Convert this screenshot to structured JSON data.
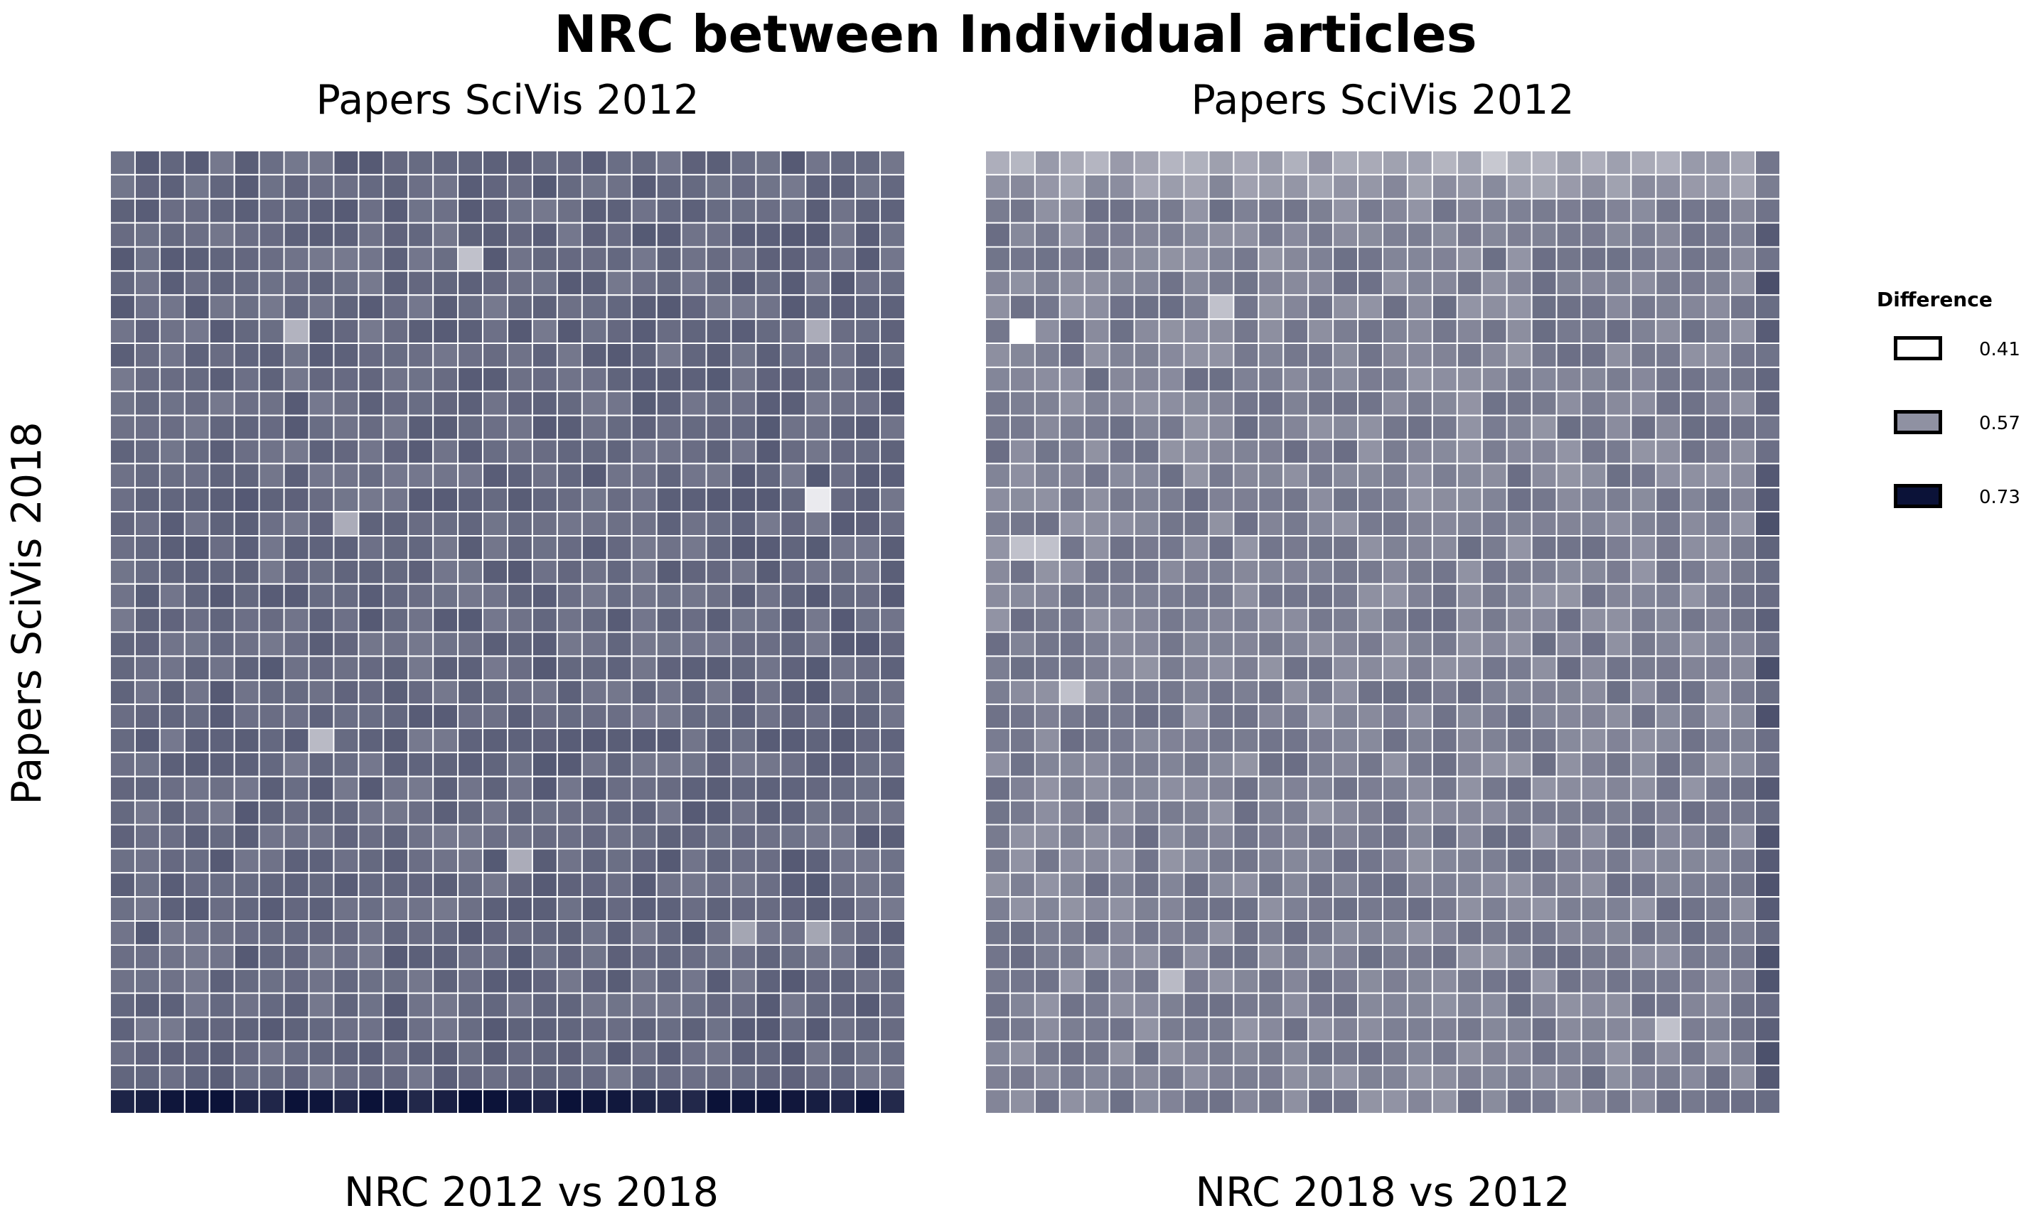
{
  "title": "NRC between Individual articles",
  "y_axis_label": "Papers SciVis 2018",
  "colors": {
    "low": "#ffffff",
    "mid": "#8f91a2",
    "high": "#0b1238",
    "grid": "#ffffff"
  },
  "legend": {
    "title": "Difference",
    "items": [
      {
        "label": "0.41",
        "color": "#ffffff"
      },
      {
        "label": "0.57",
        "color": "#8f91a2"
      },
      {
        "label": "0.73",
        "color": "#0b1238"
      }
    ]
  },
  "chart_data": [
    {
      "type": "heatmap",
      "title": "Papers SciVis 2012",
      "xlabel": "NRC 2012 vs 2018",
      "ylabel": "Papers SciVis 2018",
      "rows": 40,
      "cols": 32,
      "value_range": [
        0.41,
        0.73
      ],
      "base_value": 0.62,
      "noise": 0.02,
      "seed": 7,
      "row_offsets": {
        "39": 0.1
      },
      "cell_overrides": [
        {
          "row": 4,
          "col": 14,
          "value": 0.5
        },
        {
          "row": 7,
          "col": 7,
          "value": 0.52
        },
        {
          "row": 7,
          "col": 28,
          "value": 0.53
        },
        {
          "row": 14,
          "col": 28,
          "value": 0.44
        },
        {
          "row": 15,
          "col": 9,
          "value": 0.53
        },
        {
          "row": 24,
          "col": 8,
          "value": 0.51
        },
        {
          "row": 29,
          "col": 16,
          "value": 0.53
        },
        {
          "row": 32,
          "col": 25,
          "value": 0.54
        },
        {
          "row": 32,
          "col": 28,
          "value": 0.54
        }
      ]
    },
    {
      "type": "heatmap",
      "title": "Papers SciVis 2012",
      "xlabel": "NRC 2018 vs 2012",
      "ylabel": "",
      "rows": 40,
      "cols": 32,
      "value_range": [
        0.41,
        0.73
      ],
      "base_value": 0.59,
      "noise": 0.025,
      "seed": 19,
      "row_offsets": {
        "0": -0.05,
        "1": -0.03
      },
      "col_offsets": {
        "31": 0.04
      },
      "cell_overrides": [
        {
          "row": 7,
          "col": 1,
          "value": 0.41
        },
        {
          "row": 6,
          "col": 9,
          "value": 0.5
        },
        {
          "row": 16,
          "col": 1,
          "value": 0.5
        },
        {
          "row": 16,
          "col": 2,
          "value": 0.5
        },
        {
          "row": 22,
          "col": 3,
          "value": 0.5
        },
        {
          "row": 34,
          "col": 7,
          "value": 0.51
        },
        {
          "row": 36,
          "col": 27,
          "value": 0.5
        },
        {
          "row": 0,
          "col": 20,
          "value": 0.49
        }
      ]
    }
  ]
}
